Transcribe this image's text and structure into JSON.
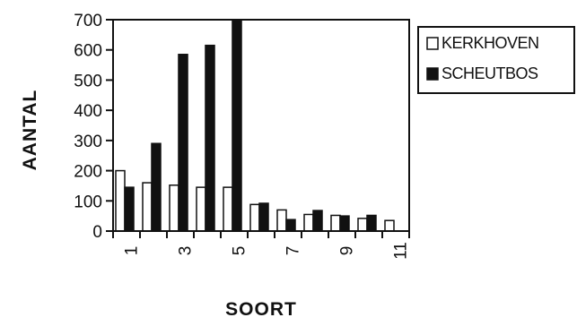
{
  "chart_data": {
    "type": "bar",
    "title": "",
    "xlabel": "SOORT",
    "ylabel": "AANTAL",
    "ylim": [
      0,
      700
    ],
    "yticks": [
      0,
      100,
      200,
      300,
      400,
      500,
      600,
      700
    ],
    "xticks": [
      "1",
      "3",
      "5",
      "7",
      "9",
      "11"
    ],
    "categories": [
      1,
      2,
      3,
      4,
      5,
      6,
      7,
      8,
      9,
      10,
      11
    ],
    "series": [
      {
        "name": "KERKHOVEN",
        "fill": "#ffffff",
        "values": [
          200,
          160,
          152,
          145,
          145,
          88,
          70,
          55,
          52,
          42,
          35
        ]
      },
      {
        "name": "SCHEUTBOS",
        "fill": "#111111",
        "values": [
          145,
          290,
          585,
          615,
          700,
          92,
          38,
          68,
          50,
          52,
          0
        ]
      }
    ],
    "legend_position": "right",
    "grid": false
  }
}
